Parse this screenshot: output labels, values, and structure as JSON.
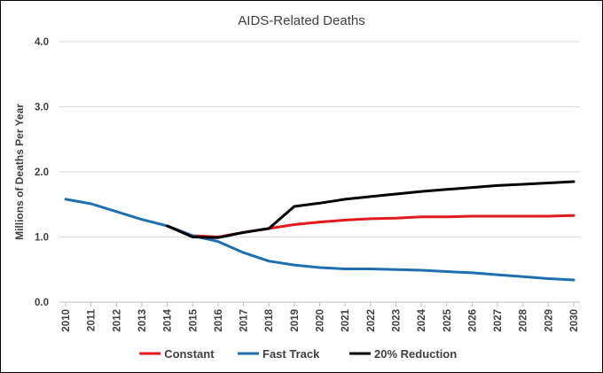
{
  "chart_data": {
    "type": "line",
    "title": "AIDS-Related Deaths",
    "xlabel": "",
    "ylabel": "Millions of Deaths Per Year",
    "x": [
      "2010",
      "2011",
      "2012",
      "2013",
      "2014",
      "2015",
      "2016",
      "2017",
      "2018",
      "2019",
      "2020",
      "2021",
      "2022",
      "2023",
      "2024",
      "2025",
      "2026",
      "2027",
      "2028",
      "2029",
      "2030"
    ],
    "ylim": [
      0,
      4
    ],
    "yticks": [
      "0.0",
      "1.0",
      "2.0",
      "3.0",
      "4.0"
    ],
    "grid": true,
    "legend_position": "bottom",
    "series": [
      {
        "name": "Constant",
        "color": "#e31a1c",
        "values": [
          null,
          null,
          null,
          null,
          1.17,
          1.02,
          1.0,
          1.07,
          1.13,
          1.19,
          1.23,
          1.26,
          1.28,
          1.29,
          1.31,
          1.31,
          1.32,
          1.32,
          1.32,
          1.32,
          1.33
        ]
      },
      {
        "name": "Fast Track",
        "color": "#1f6eb0",
        "values": [
          1.58,
          1.51,
          1.39,
          1.27,
          1.17,
          1.02,
          0.93,
          0.76,
          0.63,
          0.57,
          0.53,
          0.51,
          0.51,
          0.5,
          0.49,
          0.47,
          0.45,
          0.42,
          0.39,
          0.36,
          0.34
        ]
      },
      {
        "name": "20% Reduction",
        "color": "#000000",
        "values": [
          null,
          null,
          null,
          null,
          1.17,
          1.0,
          0.99,
          1.07,
          1.13,
          1.47,
          1.52,
          1.58,
          1.62,
          1.66,
          1.7,
          1.73,
          1.76,
          1.79,
          1.81,
          1.83,
          1.85
        ]
      }
    ]
  }
}
